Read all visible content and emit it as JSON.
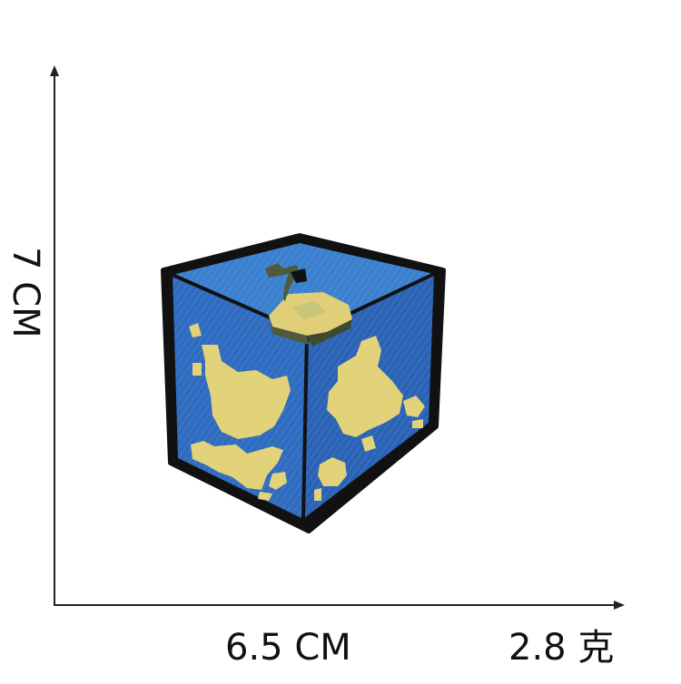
{
  "dimensions": {
    "width_label": "6.5 CM",
    "height_label": "7 CM",
    "weight_label": "2.8 克"
  },
  "colors": {
    "patch_blue": "#2f6fc2",
    "patch_blue_dark": "#245aa6",
    "patch_blue_top": "#3b82d0",
    "landmass_yellow": "#e2d27a",
    "border_black": "#111111",
    "island_green": "#4e5a3a"
  },
  "image": {
    "subject": "embroidered patch of a blue cube with yellow landmasses",
    "icon": "cube-patch"
  }
}
